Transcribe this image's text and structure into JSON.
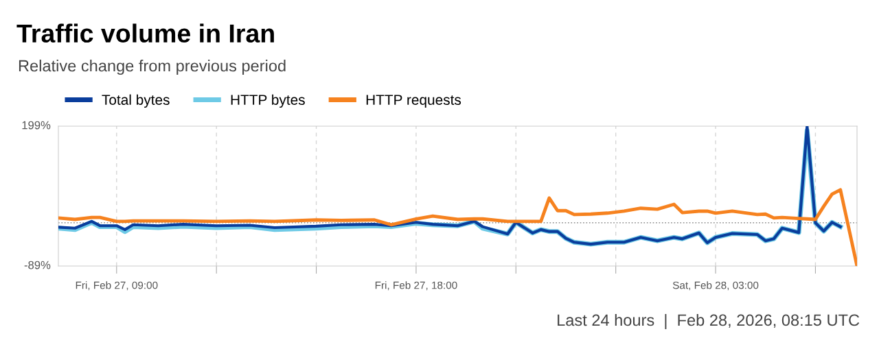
{
  "chart_data": {
    "type": "line",
    "title": "Traffic volume in Iran",
    "subtitle": "Relative change from previous period",
    "x": [
      "2026-02-27T07:15",
      "2026-02-27T07:45",
      "2026-02-27T08:15",
      "2026-02-27T08:30",
      "2026-02-27T09:00",
      "2026-02-27T09:15",
      "2026-02-27T09:30",
      "2026-02-27T10:15",
      "2026-02-27T11:00",
      "2026-02-27T12:00",
      "2026-02-27T13:00",
      "2026-02-27T13:45",
      "2026-02-27T15:00",
      "2026-02-27T15:45",
      "2026-02-27T16:45",
      "2026-02-27T17:15",
      "2026-02-27T18:00",
      "2026-02-27T18:30",
      "2026-02-27T19:15",
      "2026-02-27T19:45",
      "2026-02-27T20:00",
      "2026-02-27T20:45",
      "2026-02-27T21:00",
      "2026-02-27T21:30",
      "2026-02-27T21:45",
      "2026-02-27T22:00",
      "2026-02-27T22:15",
      "2026-02-27T22:30",
      "2026-02-27T22:45",
      "2026-02-27T23:15",
      "2026-02-27T23:45",
      "2026-02-28T00:15",
      "2026-02-28T00:45",
      "2026-02-28T01:15",
      "2026-02-28T01:45",
      "2026-02-28T02:00",
      "2026-02-28T02:30",
      "2026-02-28T02:45",
      "2026-02-28T03:00",
      "2026-02-28T03:30",
      "2026-02-28T04:15",
      "2026-02-28T04:30",
      "2026-02-28T04:45",
      "2026-02-28T05:00",
      "2026-02-28T05:30",
      "2026-02-28T05:45",
      "2026-02-28T06:00",
      "2026-02-28T06:15",
      "2026-02-28T06:30",
      "2026-02-28T06:45",
      "2026-02-28T07:15"
    ],
    "series": [
      {
        "name": "Total bytes",
        "color": "#0a3d9c",
        "values": [
          -9,
          -11,
          3,
          -6,
          -6,
          -14,
          -4,
          -6,
          -3,
          -6,
          -5,
          -10,
          -7,
          -4,
          -3,
          -6,
          1,
          -3,
          -6,
          3,
          -8,
          -23,
          1,
          -21,
          -14,
          -18,
          -18,
          -32,
          -40,
          -44,
          -40,
          -40,
          -30,
          -37,
          -30,
          -33,
          -21,
          -41,
          -30,
          -22,
          -24,
          -37,
          -33,
          -11,
          -20,
          199,
          0,
          -17,
          1,
          -8,
          null
        ]
      },
      {
        "name": "HTTP bytes",
        "color": "#6ecae6",
        "values": [
          -11,
          -14,
          1,
          -8,
          -8,
          -18,
          -8,
          -10,
          -7,
          -10,
          -8,
          -14,
          -11,
          -8,
          -6,
          -8,
          -1,
          -4,
          -6,
          3,
          -11,
          -23,
          1,
          -21,
          -14,
          -18,
          -18,
          -32,
          -40,
          -44,
          -40,
          -40,
          -30,
          -37,
          -30,
          -33,
          -21,
          -41,
          -30,
          -22,
          -24,
          -37,
          -33,
          -11,
          -20,
          190,
          0,
          -17,
          1,
          -8,
          null
        ]
      },
      {
        "name": "HTTP requests",
        "color": "#f6821f",
        "values": [
          10,
          7,
          11,
          11,
          3,
          3,
          4,
          4,
          4,
          3,
          4,
          3,
          6,
          5,
          6,
          -4,
          8,
          14,
          7,
          8,
          8,
          3,
          3,
          3,
          3,
          51,
          25,
          25,
          17,
          18,
          20,
          24,
          30,
          28,
          38,
          21,
          24,
          24,
          20,
          24,
          17,
          18,
          10,
          11,
          9,
          8,
          7,
          34,
          59,
          68,
          -89
        ]
      }
    ],
    "xlim": [
      "2026-02-27T07:15",
      "2026-02-28T07:15"
    ],
    "xticks": [
      {
        "value": "2026-02-27T09:00",
        "label": "Fri, Feb 27, 09:00"
      },
      {
        "value": "2026-02-27T12:00",
        "label": null
      },
      {
        "value": "2026-02-27T15:00",
        "label": null
      },
      {
        "value": "2026-02-27T18:00",
        "label": "Fri, Feb 27, 18:00"
      },
      {
        "value": "2026-02-27T21:00",
        "label": null
      },
      {
        "value": "2026-02-28T00:00",
        "label": null
      },
      {
        "value": "2026-02-28T03:00",
        "label": "Sat, Feb 28, 03:00"
      },
      {
        "value": "2026-02-28T06:00",
        "label": null
      }
    ],
    "ylim": [
      -89,
      199
    ],
    "yticks": [
      {
        "value": -89,
        "label": "-89%"
      },
      {
        "value": 199,
        "label": "199%"
      }
    ],
    "ref_lines": [
      {
        "axis": "y",
        "value": 0,
        "label": null,
        "color": "#999999",
        "line_style": "dotted"
      }
    ],
    "grid": "x",
    "legend": "top left",
    "marker": "none",
    "line_style": "solid",
    "annotations": [
      "Last 24 hours  |  Feb 28, 2026, 08:15 UTC"
    ]
  }
}
